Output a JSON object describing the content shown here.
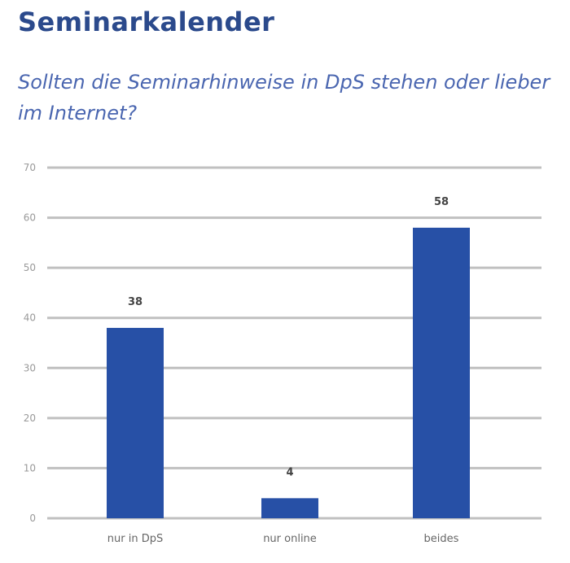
{
  "title": "Seminarkalender",
  "subtitle": "Sollten die Seminarhinweise in DpS stehen oder lieber im Internet?",
  "colors": {
    "bar": "#2750a6",
    "grid": "#c0c0c0"
  },
  "chart_data": {
    "type": "bar",
    "title": "Sollten die Seminarhinweise in DpS stehen oder lieber im Internet?",
    "categories": [
      "nur in DpS",
      "nur online",
      "beides"
    ],
    "values": [
      38,
      4,
      58
    ],
    "data_labels": [
      "38",
      "4",
      "58"
    ],
    "yticks": [
      0,
      10,
      20,
      30,
      40,
      50,
      60,
      70
    ],
    "ylim": [
      0,
      70
    ],
    "xlabel": "",
    "ylabel": "",
    "grid": true,
    "legend": "none"
  }
}
